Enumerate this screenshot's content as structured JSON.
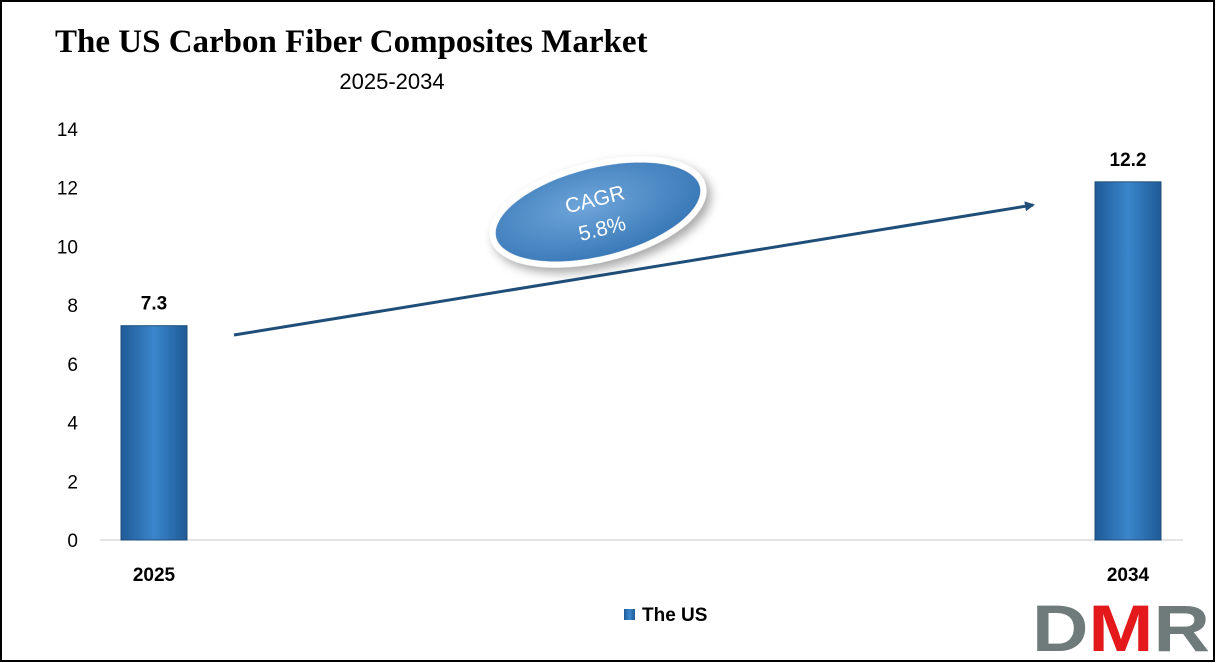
{
  "chart_data": {
    "type": "bar",
    "title": "The US Carbon Fiber Composites Market",
    "subtitle": "2025-2034",
    "categories": [
      "2025",
      "2034"
    ],
    "series": [
      {
        "name": "The US",
        "values": [
          7.3,
          12.2
        ],
        "color": "#2E75B6"
      }
    ],
    "data_labels": [
      "7.3",
      "12.2"
    ],
    "ylim": [
      0,
      14
    ],
    "yticks": [
      0,
      2,
      4,
      6,
      8,
      10,
      12,
      14
    ],
    "grid": false,
    "legend": "bottom-center",
    "annotation": {
      "line1": "CAGR",
      "line2": "5.8%"
    },
    "xlabel": "",
    "ylabel": ""
  },
  "logo": {
    "text": "DMR",
    "colors": {
      "D": "#6E7B7A",
      "M": "#E3191B",
      "R": "#6E7B7A"
    }
  }
}
